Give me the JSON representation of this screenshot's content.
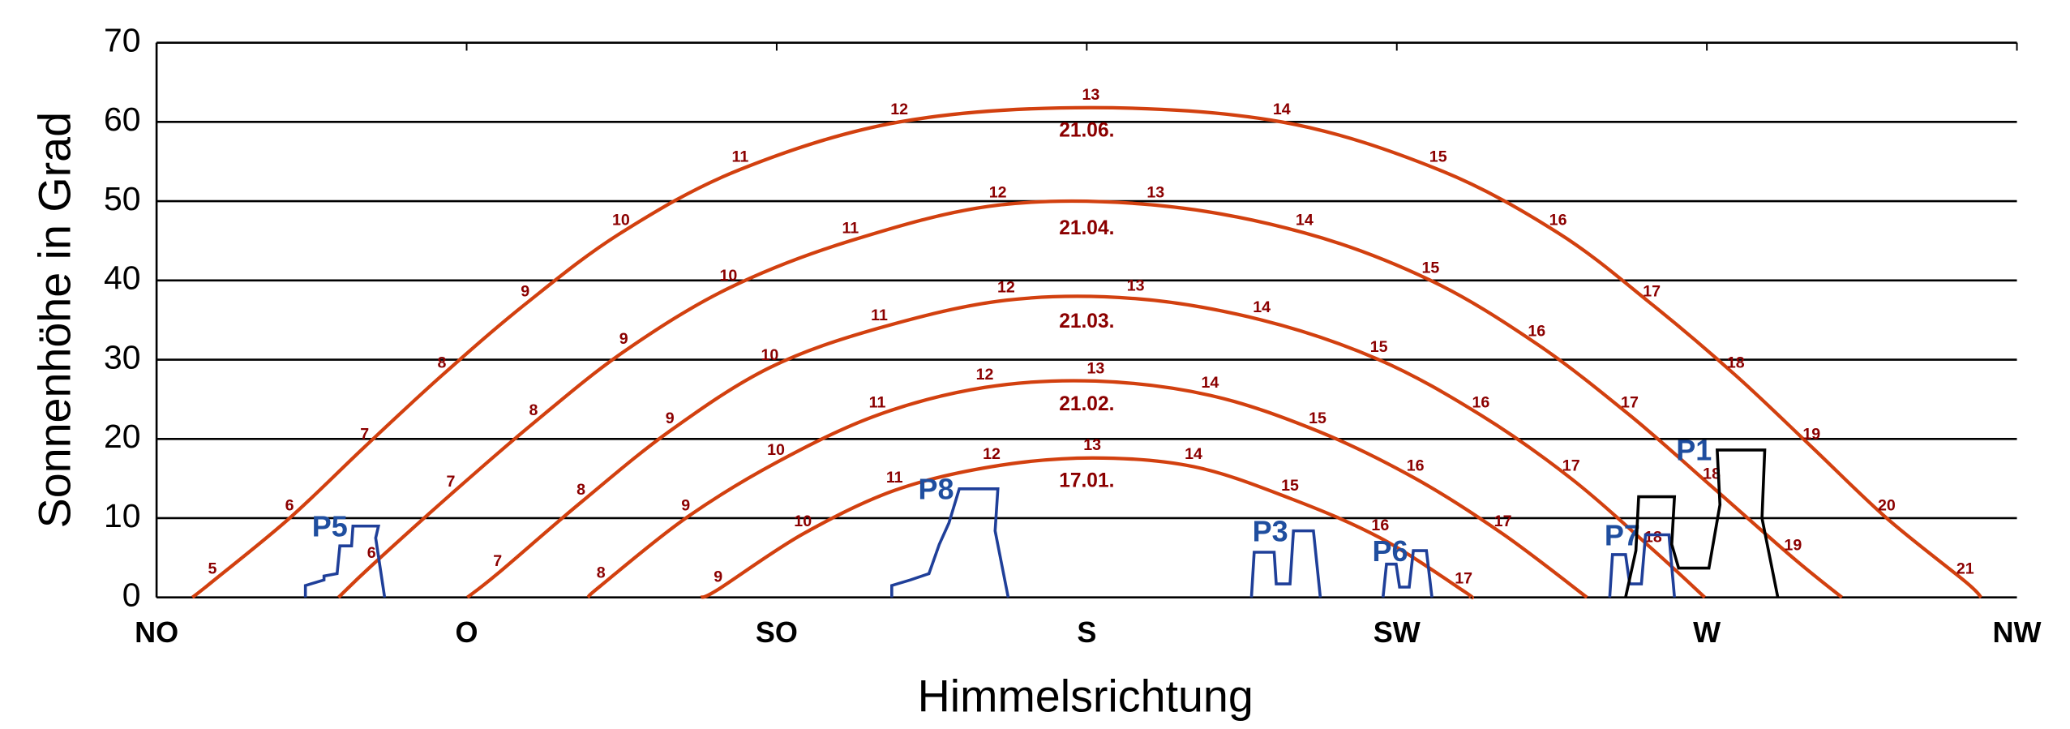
{
  "chart_data": {
    "type": "line",
    "xlabel": "Himmelsrichtung",
    "ylabel": "Sonnenhöhe in Grad",
    "xlim": [
      45,
      315
    ],
    "ylim": [
      0,
      70
    ],
    "xticks": [
      {
        "value": 45,
        "label": "NO"
      },
      {
        "value": 90,
        "label": "O"
      },
      {
        "value": 135,
        "label": "SO"
      },
      {
        "value": 180,
        "label": "S"
      },
      {
        "value": 225,
        "label": "SW"
      },
      {
        "value": 270,
        "label": "W"
      },
      {
        "value": 315,
        "label": "NW"
      }
    ],
    "yticks": [
      0,
      10,
      20,
      30,
      40,
      50,
      60,
      70
    ],
    "grid": true,
    "series": [
      {
        "name": "21.06.",
        "color": "#d2400f",
        "x": [
          50.2,
          53.1,
          64.3,
          75.2,
          86.4,
          98.5,
          112.4,
          129.7,
          152.8,
          180.6,
          208.3,
          231,
          248.4,
          262,
          274.2,
          285.2,
          296.1,
          307.5,
          309.8
        ],
        "values": [
          0,
          2,
          10,
          19,
          28,
          37,
          46,
          54,
          60,
          61.8,
          60,
          54,
          46,
          37,
          28,
          19,
          10,
          2,
          0
        ],
        "hours": [
          null,
          5,
          6,
          7,
          8,
          9,
          10,
          11,
          12,
          13,
          14,
          15,
          16,
          17,
          18,
          19,
          20,
          21,
          null
        ]
      },
      {
        "name": "21.04.",
        "color": "#d2400f",
        "x": [
          71.4,
          76.2,
          87.7,
          99.7,
          112.8,
          128,
          145.7,
          167.1,
          190,
          211.6,
          229.9,
          245.3,
          258.8,
          270.7,
          282.5,
          289.6
        ],
        "values": [
          0,
          4,
          13,
          22,
          31,
          39,
          45,
          49.5,
          49.5,
          46,
          40,
          32,
          23,
          14,
          5,
          0
        ],
        "hours": [
          null,
          6,
          7,
          8,
          9,
          10,
          11,
          12,
          13,
          14,
          15,
          16,
          17,
          18,
          19,
          null
        ]
      },
      {
        "name": "21.03.",
        "color": "#d2400f",
        "x": [
          90.1,
          94.5,
          106.6,
          119.5,
          134,
          149.9,
          168.3,
          187.1,
          205.4,
          222.4,
          237.2,
          250.3,
          262.2,
          269.7
        ],
        "values": [
          0,
          3,
          12,
          21,
          29,
          34,
          37.5,
          37.7,
          35,
          30,
          23,
          15,
          6,
          0
        ],
        "hours": [
          null,
          7,
          8,
          9,
          10,
          11,
          12,
          13,
          14,
          15,
          16,
          17,
          18,
          null
        ]
      },
      {
        "name": "21.02.",
        "color": "#d2400f",
        "x": [
          107.6,
          109.5,
          121.8,
          134.9,
          149.6,
          165.2,
          181.3,
          197.9,
          213.5,
          227.7,
          240.4,
          252.6
        ],
        "values": [
          0,
          1.5,
          10,
          17,
          23,
          26.5,
          27.3,
          25.5,
          21,
          15,
          8,
          0
        ],
        "hours": [
          null,
          8,
          9,
          10,
          11,
          12,
          13,
          14,
          15,
          16,
          17,
          null
        ]
      },
      {
        "name": "17.01.",
        "color": "#d2400f",
        "x": [
          124,
          126.5,
          138.8,
          152.1,
          166.2,
          180.8,
          195.5,
          209.5,
          222.6,
          234.7,
          235.7
        ],
        "values": [
          0,
          1,
          8,
          13.5,
          16.5,
          17.6,
          16.5,
          12.5,
          7.5,
          0.8,
          0
        ],
        "hours": [
          null,
          9,
          10,
          11,
          12,
          13,
          14,
          15,
          16,
          17,
          null
        ]
      }
    ],
    "obstacles": [
      {
        "name": "P5",
        "color": "#1f3f99",
        "x": [
          66.6,
          66.6,
          69.3,
          69.3,
          71.2,
          71.6,
          73.3,
          73.5,
          77.2,
          76.8,
          78.1
        ],
        "values": [
          0,
          1.5,
          2.2,
          2.7,
          3,
          6.5,
          6.5,
          9,
          9,
          7.5,
          0
        ]
      },
      {
        "name": "P8",
        "color": "#1f3f99",
        "x": [
          151.7,
          151.7,
          154.4,
          157.1,
          158.6,
          160,
          161.5,
          167.1,
          166.7,
          168.6
        ],
        "values": [
          0,
          1.5,
          2.2,
          3,
          6.7,
          9.4,
          13.7,
          13.7,
          8.4,
          0
        ]
      },
      {
        "name": "P3",
        "color": "#1f3f99",
        "x": [
          203.9,
          204.3,
          207.2,
          207.5,
          209.5,
          210,
          212.9,
          213.9
        ],
        "values": [
          0,
          5.7,
          5.7,
          1.7,
          1.7,
          8.4,
          8.4,
          0
        ]
      },
      {
        "name": "P6",
        "color": "#1f3f99",
        "x": [
          223,
          223.5,
          224.9,
          225.4,
          226.8,
          227.4,
          229.3,
          230.1
        ],
        "values": [
          0,
          4.2,
          4.2,
          1.3,
          1.3,
          5.9,
          5.9,
          0
        ]
      },
      {
        "name": "P7",
        "color": "#1f3f99",
        "x": [
          255.9,
          256.3,
          258.2,
          258.8,
          260.5,
          261.1,
          264.5,
          265.3
        ],
        "values": [
          0,
          5.4,
          5.4,
          1.7,
          1.7,
          7.9,
          7.9,
          0
        ]
      },
      {
        "name": "P1",
        "color": "#000000",
        "x": [
          258.2,
          259.7,
          260.1,
          265.3,
          264.9,
          265.9,
          270.3,
          271.9,
          271.5,
          278.4,
          278,
          280.3
        ],
        "values": [
          0,
          5.9,
          12.7,
          12.7,
          6.7,
          3.7,
          3.7,
          11.7,
          18.6,
          18.6,
          10,
          0
        ]
      }
    ]
  }
}
